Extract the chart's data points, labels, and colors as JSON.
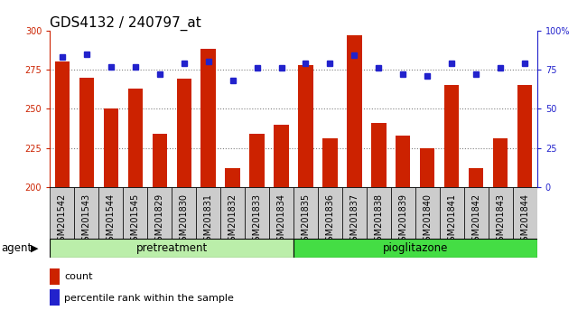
{
  "title": "GDS4132 / 240797_at",
  "categories": [
    "GSM201542",
    "GSM201543",
    "GSM201544",
    "GSM201545",
    "GSM201829",
    "GSM201830",
    "GSM201831",
    "GSM201832",
    "GSM201833",
    "GSM201834",
    "GSM201835",
    "GSM201836",
    "GSM201837",
    "GSM201838",
    "GSM201839",
    "GSM201840",
    "GSM201841",
    "GSM201842",
    "GSM201843",
    "GSM201844"
  ],
  "counts": [
    280,
    270,
    250,
    263,
    234,
    269,
    288,
    212,
    234,
    240,
    278,
    231,
    297,
    241,
    233,
    225,
    265,
    212,
    231,
    265
  ],
  "percentile_ranks": [
    83,
    85,
    77,
    77,
    72,
    79,
    80,
    68,
    76,
    76,
    79,
    79,
    84,
    76,
    72,
    71,
    79,
    72,
    76,
    79
  ],
  "pretreatment_count": 10,
  "ylim_left": [
    200,
    300
  ],
  "ylim_right": [
    0,
    100
  ],
  "yticks_left": [
    200,
    225,
    250,
    275,
    300
  ],
  "yticks_right": [
    0,
    25,
    50,
    75,
    100
  ],
  "bar_color": "#cc2200",
  "dot_color": "#2222cc",
  "pretreatment_color": "#bbeeaa",
  "pioglitazone_color": "#44dd44",
  "tick_bg_color": "#cccccc",
  "agent_label": "agent",
  "pretreatment_label": "pretreatment",
  "pioglitazone_label": "pioglitazone",
  "legend_count_label": "count",
  "legend_percentile_label": "percentile rank within the sample",
  "grid_values": [
    275,
    250,
    225
  ],
  "title_fontsize": 11,
  "tick_fontsize": 7,
  "label_fontsize": 8.5,
  "legend_fontsize": 8
}
